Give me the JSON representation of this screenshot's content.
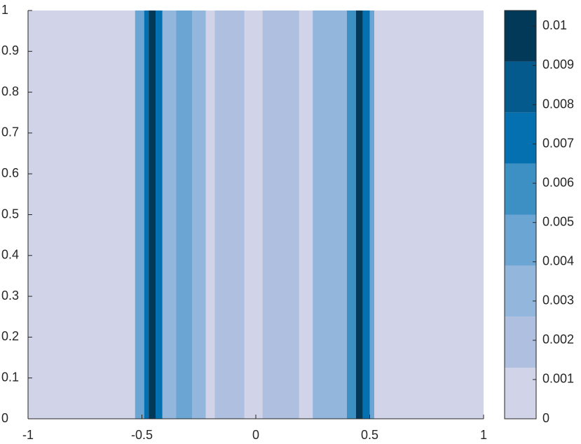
{
  "chart_data": {
    "type": "contourf",
    "x_edges": [
      -0.53,
      -0.49,
      -0.47,
      -0.44,
      -0.41,
      -0.35,
      -0.28,
      -0.22,
      -0.18,
      -0.05,
      0.03,
      0.19,
      0.25,
      0.4,
      0.44,
      0.47,
      0.5,
      0.52
    ],
    "values": [
      0.0045,
      0.007,
      0.0098,
      0.007,
      0.003,
      0.0045,
      0.003,
      0.0005,
      0.0018,
      0.0005,
      0.0018,
      0.0005,
      0.003,
      0.006,
      0.0098,
      0.007,
      0.0045
    ],
    "background": 0.0005,
    "levels": [
      0,
      0.0013,
      0.0026,
      0.0039,
      0.0052,
      0.0065,
      0.0078,
      0.0091,
      0.0104
    ],
    "colors": [
      "#d1d3e8",
      "#aebfdf",
      "#93b6dc",
      "#6aa5d3",
      "#3d90c4",
      "#0570b0",
      "#045a8d",
      "#023858"
    ],
    "xlim": [
      -1,
      1
    ],
    "ylim": [
      0,
      1
    ],
    "xticks": [
      -1,
      -0.5,
      0,
      0.5,
      1
    ],
    "yticks": [
      0,
      0.1,
      0.2,
      0.3,
      0.4,
      0.5,
      0.6,
      0.7,
      0.8,
      0.9,
      1
    ],
    "clim": [
      0,
      0.0104
    ],
    "cticks": [
      0,
      0.001,
      0.002,
      0.003,
      0.004,
      0.005,
      0.006,
      0.007,
      0.008,
      0.009,
      0.01
    ]
  }
}
